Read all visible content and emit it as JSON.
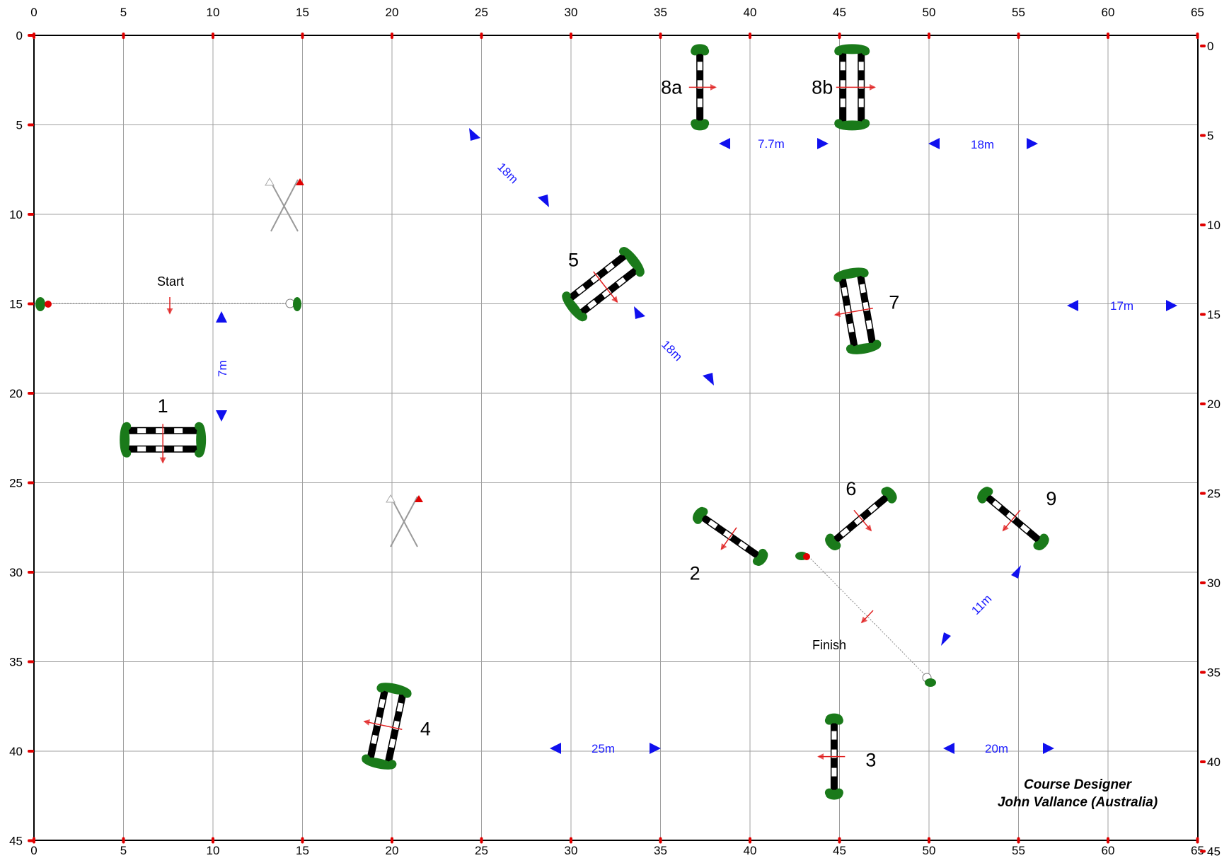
{
  "arena": {
    "x_ticks": [
      "0",
      "5",
      "10",
      "15",
      "20",
      "25",
      "30",
      "35",
      "40",
      "45",
      "50",
      "55",
      "60",
      "65"
    ],
    "y_ticks": [
      "0",
      "5",
      "10",
      "15",
      "20",
      "25",
      "30",
      "35",
      "40",
      "45"
    ],
    "right_ticks": [
      "0",
      "5",
      "10",
      "15",
      "20",
      "25",
      "30",
      "35",
      "40",
      "45"
    ],
    "colors": {
      "grid": "#a0a0a0",
      "border": "#000000",
      "tick_mark": "#e00000",
      "distance": "#1010ee",
      "hedge": "#1a7a1a",
      "direction": "#e02020"
    }
  },
  "labels": {
    "start": "Start",
    "finish": "Finish",
    "designer_title": "Course Designer",
    "designer_name": "John Vallance (Australia)"
  },
  "fences": [
    {
      "id": "1",
      "label": "1",
      "type": "oxer",
      "x": 7.2,
      "y": 22.6,
      "angle": 0,
      "dir": "down"
    },
    {
      "id": "2",
      "label": "2",
      "type": "vertical",
      "x": 38.9,
      "y": 28.0,
      "angle": 35,
      "dir": "down"
    },
    {
      "id": "3",
      "label": "3",
      "type": "vertical",
      "x": 44.7,
      "y": 40.3,
      "angle": 90,
      "dir": "left"
    },
    {
      "id": "4",
      "label": "4",
      "type": "oxer",
      "x": 19.7,
      "y": 38.6,
      "angle": 102,
      "dir": "left"
    },
    {
      "id": "5",
      "label": "5",
      "type": "oxer",
      "x": 31.8,
      "y": 13.9,
      "angle": -38,
      "dir": "down"
    },
    {
      "id": "6",
      "label": "6",
      "type": "vertical",
      "x": 46.2,
      "y": 27.0,
      "angle": -40,
      "dir": "down"
    },
    {
      "id": "7",
      "label": "7",
      "type": "oxer",
      "x": 46.0,
      "y": 15.4,
      "angle": 80,
      "dir": "left"
    },
    {
      "id": "8a",
      "label": "8a",
      "type": "vertical",
      "x": 37.2,
      "y": 2.9,
      "angle": 90,
      "dir": "right"
    },
    {
      "id": "8b",
      "label": "8b",
      "type": "oxer",
      "x": 45.7,
      "y": 2.9,
      "angle": 90,
      "dir": "right"
    },
    {
      "id": "9",
      "label": "9",
      "type": "vertical",
      "x": 54.7,
      "y": 27.0,
      "angle": 40,
      "dir": "down"
    }
  ],
  "distances": [
    {
      "label": "18m"
    },
    {
      "label": "18m"
    },
    {
      "label": "7m"
    },
    {
      "label": "7.7m"
    },
    {
      "label": "18m"
    },
    {
      "label": "17m"
    },
    {
      "label": "11m"
    },
    {
      "label": "25m"
    },
    {
      "label": "20m"
    }
  ]
}
